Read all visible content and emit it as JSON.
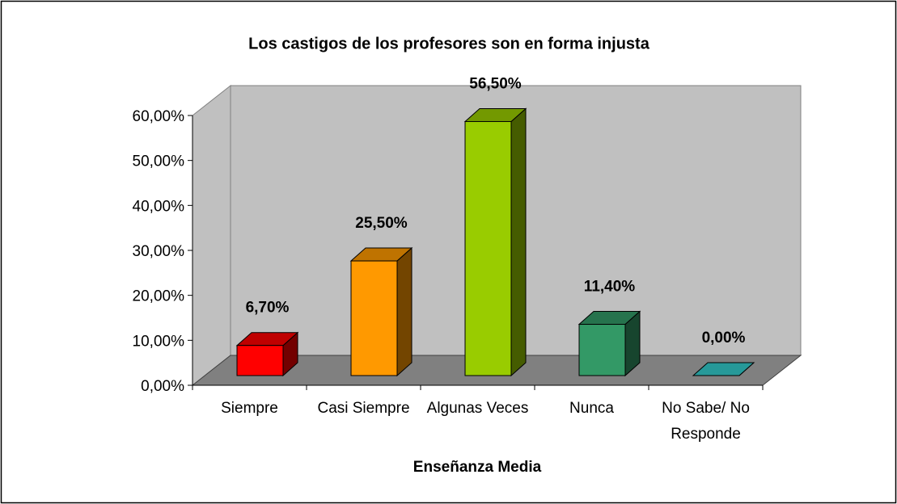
{
  "chart_data": {
    "type": "bar3d",
    "title": "Los castigos de los profesores son en forma injusta",
    "x_label": "Enseñanza Media",
    "categories": [
      "Siempre",
      "Casi Siempre",
      "Algunas Veces",
      "Nunca",
      "No Sabe/ No Responde"
    ],
    "values": [
      6.7,
      25.5,
      56.5,
      11.4,
      0
    ],
    "value_labels": [
      "6,70%",
      "25,50%",
      "56,50%",
      "11,40%",
      "0,00%"
    ],
    "colors": [
      "#ff0000",
      "#ff9900",
      "#99cc00",
      "#339966",
      "#33cccc"
    ],
    "ylim": [
      0,
      60
    ],
    "yticks": [
      {
        "value": 0,
        "label": "0,00%"
      },
      {
        "value": 10,
        "label": "10,00%"
      },
      {
        "value": 20,
        "label": "20,00%"
      },
      {
        "value": 30,
        "label": "30,00%"
      },
      {
        "value": 40,
        "label": "40,00%"
      },
      {
        "value": 50,
        "label": "50,00%"
      },
      {
        "value": 60,
        "label": "60,00%"
      }
    ],
    "grid": false
  }
}
